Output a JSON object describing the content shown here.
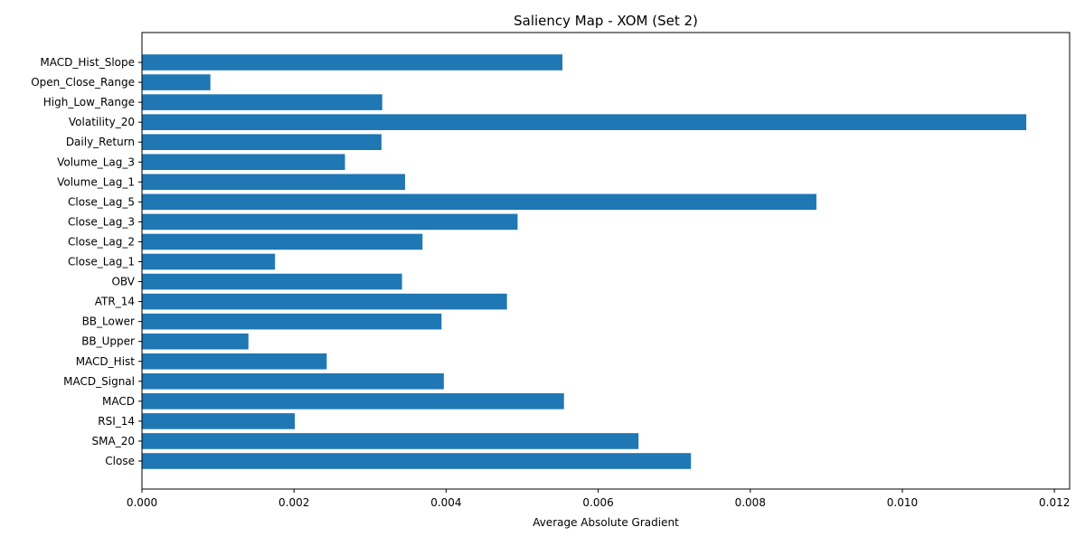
{
  "chart_data": {
    "type": "bar",
    "orientation": "horizontal",
    "title": "Saliency Map - XOM (Set 2)",
    "xlabel": "Average Absolute Gradient",
    "ylabel": "",
    "xlim": [
      0,
      0.0122
    ],
    "xticks": [
      0.0,
      0.002,
      0.004,
      0.006,
      0.008,
      0.01,
      0.012
    ],
    "xtick_labels": [
      "0.000",
      "0.002",
      "0.004",
      "0.006",
      "0.008",
      "0.010",
      "0.012"
    ],
    "grid": false,
    "bar_color": "#1f77b4",
    "categories": [
      "Close",
      "SMA_20",
      "RSI_14",
      "MACD",
      "MACD_Signal",
      "MACD_Hist",
      "BB_Upper",
      "BB_Lower",
      "ATR_14",
      "OBV",
      "Close_Lag_1",
      "Close_Lag_2",
      "Close_Lag_3",
      "Close_Lag_5",
      "Volume_Lag_1",
      "Volume_Lag_3",
      "Daily_Return",
      "Volatility_20",
      "High_Low_Range",
      "Open_Close_Range",
      "MACD_Hist_Slope"
    ],
    "values": [
      0.00722,
      0.00653,
      0.00201,
      0.00555,
      0.00397,
      0.00243,
      0.0014,
      0.00394,
      0.0048,
      0.00342,
      0.00175,
      0.00369,
      0.00494,
      0.00887,
      0.00346,
      0.00267,
      0.00315,
      0.01163,
      0.00316,
      0.0009,
      0.00553
    ]
  }
}
